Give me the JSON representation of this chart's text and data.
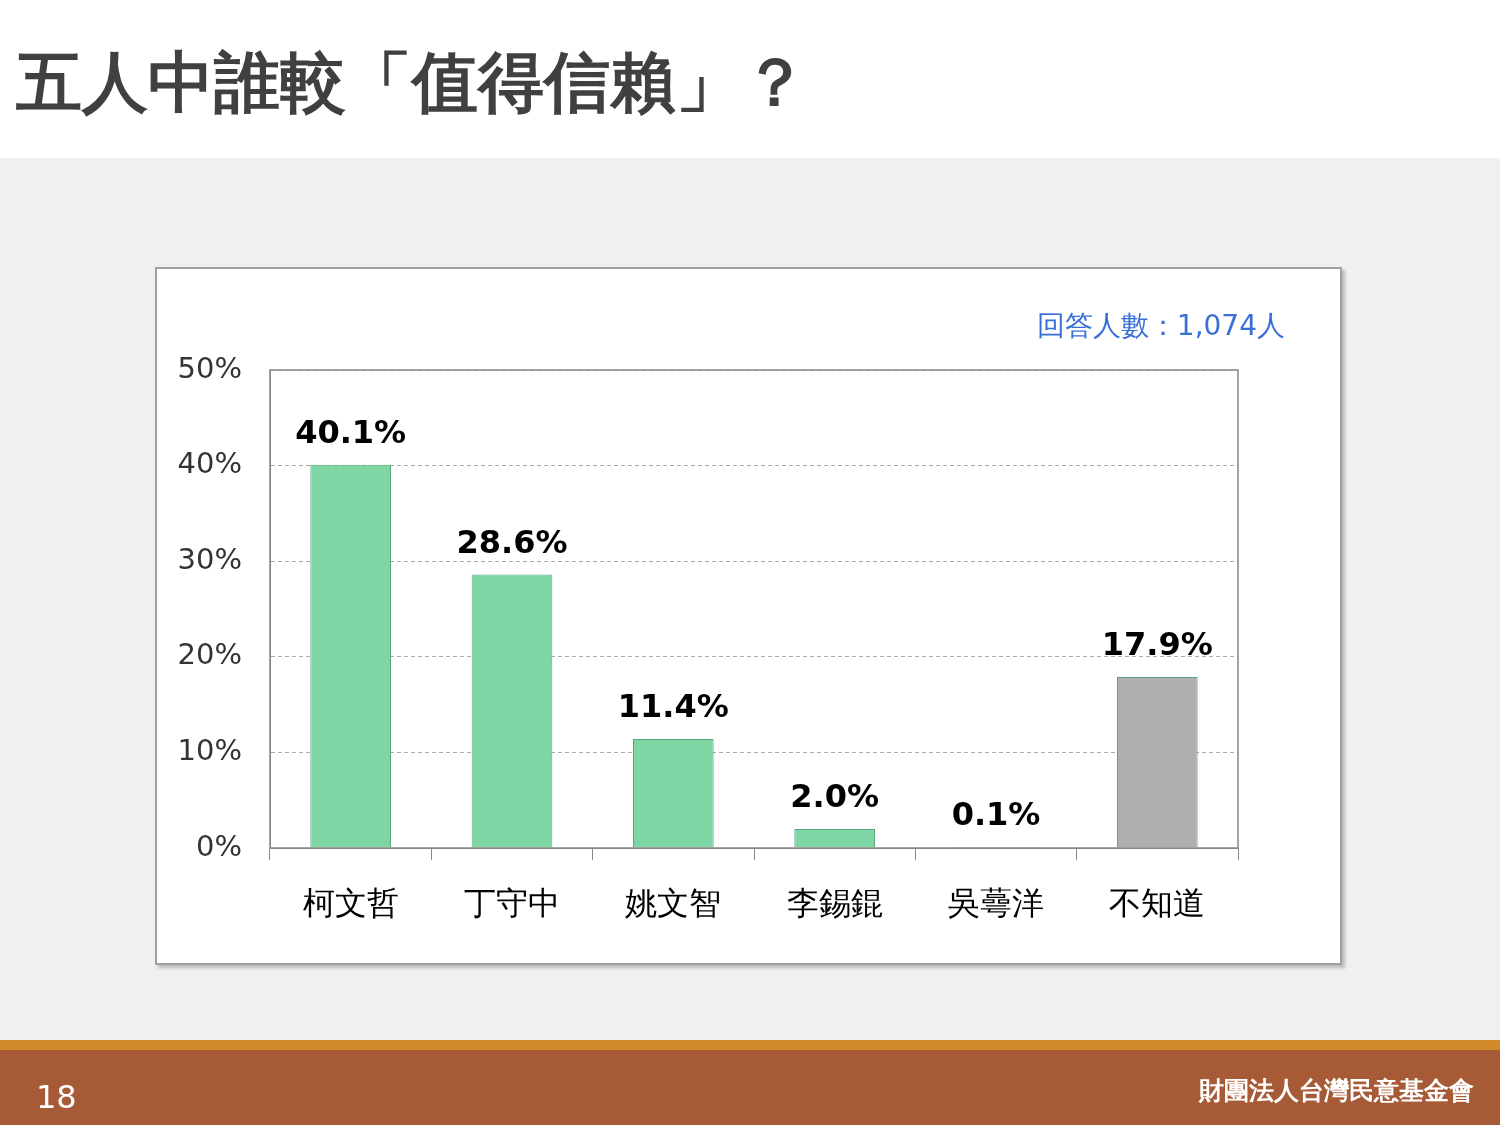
{
  "chart_data": {
    "type": "bar",
    "title": "五人中誰較「值得信賴」？",
    "categories": [
      "柯文哲",
      "丁守中",
      "姚文智",
      "李錫錕",
      "吳蕚洋",
      "不知道"
    ],
    "values": [
      40.1,
      28.6,
      11.4,
      2.0,
      0.1,
      17.9
    ],
    "colors": [
      "#7dd6a4",
      "#7dd6a4",
      "#7dd6a4",
      "#7dd6a4",
      "#7dd6a4",
      "#b0b0b0"
    ],
    "value_labels": [
      "40.1%",
      "28.6%",
      "11.4%",
      "2.0%",
      "0.1%",
      "17.9%"
    ],
    "ylim": [
      0,
      50
    ],
    "yticks": [
      {
        "value": 0,
        "label": "0%"
      },
      {
        "value": 10,
        "label": "10%"
      },
      {
        "value": 20,
        "label": "20%"
      },
      {
        "value": 30,
        "label": "30%"
      },
      {
        "value": 40,
        "label": "40%"
      },
      {
        "value": 50,
        "label": "50%"
      }
    ],
    "grid": "y",
    "legend": false,
    "annotations": [
      "回答人數：1,074人",
      "18",
      "財團法人台灣民意基金會"
    ]
  }
}
